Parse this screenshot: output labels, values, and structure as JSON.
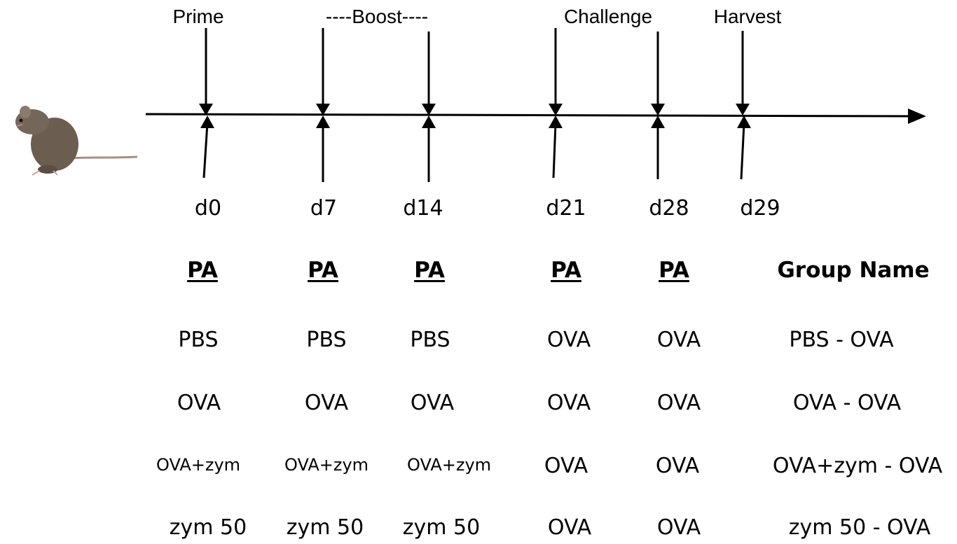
{
  "timeline": {
    "phases": [
      "Prime",
      "----Boost----",
      "Challenge",
      "Harvest"
    ],
    "days": [
      "d0",
      "d7",
      "d14",
      "d21",
      "d28",
      "d29"
    ]
  },
  "table": {
    "headers": [
      "PA",
      "PA",
      "PA",
      "PA",
      "PA",
      "Group Name"
    ],
    "rows": [
      [
        "PBS",
        "PBS",
        "PBS",
        "OVA",
        "OVA",
        "PBS - OVA"
      ],
      [
        "OVA",
        "OVA",
        "OVA",
        "OVA",
        "OVA",
        "OVA - OVA"
      ],
      [
        "OVA+zym",
        "OVA+zym",
        "OVA+zym",
        "OVA",
        "OVA",
        "OVA+zym - OVA"
      ],
      [
        "zym 50",
        "zym 50",
        "zym 50",
        "OVA",
        "OVA",
        "zym 50 - OVA"
      ]
    ]
  },
  "illustration": {
    "subject": "mouse",
    "color": "#6b5e50"
  }
}
